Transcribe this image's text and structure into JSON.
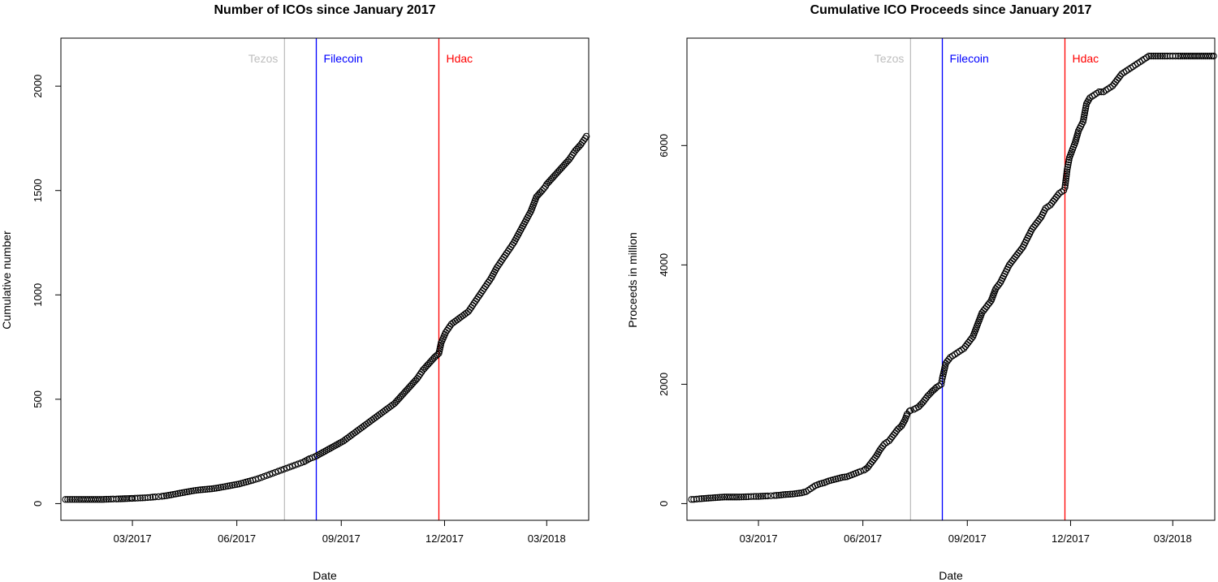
{
  "chart_data": [
    {
      "type": "scatter",
      "title": "Number of ICOs since January 2017",
      "xlabel": "Date",
      "ylabel": "Cumulative number",
      "xlim": [
        "2016-12-28",
        "2018-04-07"
      ],
      "ylim": [
        -80,
        2230
      ],
      "x_ticks": [
        "03/2017",
        "06/2017",
        "09/2017",
        "12/2017",
        "03/2018"
      ],
      "x_tick_dates": [
        "2017-03-01",
        "2017-06-01",
        "2017-09-01",
        "2017-12-01",
        "2018-03-01"
      ],
      "y_ticks": [
        "0",
        "500",
        "1000",
        "1500",
        "2000"
      ],
      "y_tick_values": [
        0,
        500,
        1000,
        1500,
        2000
      ],
      "markers": [
        {
          "label": "Tezos",
          "date": "2017-07-13",
          "color": "#bebebe"
        },
        {
          "label": "Filecoin",
          "date": "2017-08-10",
          "color": "#0000ff"
        },
        {
          "label": "Hdac",
          "date": "2017-11-26",
          "color": "#ff0000"
        }
      ],
      "grid": false,
      "point_style": "open-circle",
      "series": [
        {
          "x": [
            "2017-01-01",
            "2017-01-05",
            "2017-01-13",
            "2017-02-02",
            "2017-02-12",
            "2017-02-15",
            "2017-02-28",
            "2017-03-01",
            "2017-03-08",
            "2017-03-12",
            "2017-03-17",
            "2017-03-21",
            "2017-03-24",
            "2017-03-27",
            "2017-03-31",
            "2017-04-04",
            "2017-04-08",
            "2017-04-12",
            "2017-04-16",
            "2017-04-20",
            "2017-04-24",
            "2017-04-28",
            "2017-05-02",
            "2017-05-06",
            "2017-05-10",
            "2017-05-14",
            "2017-05-18",
            "2017-05-22",
            "2017-05-26",
            "2017-05-30",
            "2017-06-03",
            "2017-06-07",
            "2017-06-11",
            "2017-06-15",
            "2017-06-20",
            "2017-06-25",
            "2017-06-30",
            "2017-07-05",
            "2017-07-10",
            "2017-07-15",
            "2017-07-20",
            "2017-07-25",
            "2017-07-30",
            "2017-08-04",
            "2017-08-09",
            "2017-08-14",
            "2017-08-19",
            "2017-08-24",
            "2017-08-29",
            "2017-09-03",
            "2017-09-08",
            "2017-09-13",
            "2017-09-18",
            "2017-09-23",
            "2017-09-28",
            "2017-10-03",
            "2017-10-08",
            "2017-10-13",
            "2017-10-18",
            "2017-10-23",
            "2017-10-28",
            "2017-11-02",
            "2017-11-07",
            "2017-11-12",
            "2017-11-17",
            "2017-11-22",
            "2017-11-26",
            "2017-11-28",
            "2017-12-02",
            "2017-12-07",
            "2017-12-12",
            "2017-12-17",
            "2017-12-22",
            "2017-12-27",
            "2018-01-01",
            "2018-01-06",
            "2018-01-11",
            "2018-01-16",
            "2018-01-21",
            "2018-01-26",
            "2018-01-31",
            "2018-02-05",
            "2018-02-10",
            "2018-02-15",
            "2018-02-20",
            "2018-02-25",
            "2018-02-28",
            "2018-03-01",
            "2018-03-06",
            "2018-03-11",
            "2018-03-16",
            "2018-03-21",
            "2018-03-26",
            "2018-03-31",
            "2018-04-05"
          ],
          "y": [
            20,
            20,
            20,
            20,
            22,
            22,
            25,
            25,
            27,
            28,
            30,
            32,
            33,
            35,
            38,
            42,
            46,
            50,
            54,
            58,
            62,
            65,
            67,
            69,
            71,
            74,
            78,
            82,
            86,
            90,
            94,
            100,
            106,
            112,
            120,
            130,
            140,
            150,
            160,
            170,
            180,
            190,
            200,
            215,
            225,
            240,
            255,
            270,
            285,
            300,
            320,
            340,
            360,
            380,
            400,
            420,
            440,
            460,
            480,
            510,
            540,
            570,
            600,
            640,
            670,
            700,
            720,
            770,
            820,
            860,
            880,
            900,
            920,
            960,
            1000,
            1040,
            1080,
            1130,
            1170,
            1210,
            1250,
            1300,
            1350,
            1400,
            1470,
            1500,
            1520,
            1530,
            1560,
            1590,
            1620,
            1650,
            1690,
            1720,
            1760
          ]
        }
      ]
    },
    {
      "type": "scatter",
      "title": "Cumulative ICO Proceeds since January 2017",
      "xlabel": "Date",
      "ylabel": "Proceeds in million",
      "xlim": [
        "2016-12-28",
        "2018-04-07"
      ],
      "ylim": [
        -280,
        7800
      ],
      "x_ticks": [
        "03/2017",
        "06/2017",
        "09/2017",
        "12/2017",
        "03/2018"
      ],
      "x_tick_dates": [
        "2017-03-01",
        "2017-06-01",
        "2017-09-01",
        "2017-12-01",
        "2018-03-01"
      ],
      "y_ticks": [
        "0",
        "2000",
        "4000",
        "6000"
      ],
      "y_tick_values": [
        0,
        2000,
        4000,
        6000
      ],
      "markers": [
        {
          "label": "Tezos",
          "date": "2017-07-13",
          "color": "#bebebe"
        },
        {
          "label": "Filecoin",
          "date": "2017-08-10",
          "color": "#0000ff"
        },
        {
          "label": "Hdac",
          "date": "2017-11-26",
          "color": "#ff0000"
        }
      ],
      "grid": false,
      "point_style": "open-circle",
      "series": [
        {
          "x": [
            "2017-01-01",
            "2017-01-03",
            "2017-01-08",
            "2017-01-22",
            "2017-01-30",
            "2017-02-01",
            "2017-02-10",
            "2017-02-12",
            "2017-02-20",
            "2017-02-25",
            "2017-03-01",
            "2017-03-05",
            "2017-03-09",
            "2017-03-12",
            "2017-03-15",
            "2017-03-19",
            "2017-03-23",
            "2017-03-27",
            "2017-03-31",
            "2017-04-04",
            "2017-04-08",
            "2017-04-12",
            "2017-04-16",
            "2017-04-20",
            "2017-04-24",
            "2017-04-28",
            "2017-05-02",
            "2017-05-06",
            "2017-05-10",
            "2017-05-14",
            "2017-05-18",
            "2017-05-22",
            "2017-05-26",
            "2017-05-30",
            "2017-06-02",
            "2017-06-05",
            "2017-06-09",
            "2017-06-13",
            "2017-06-16",
            "2017-06-20",
            "2017-06-24",
            "2017-06-28",
            "2017-07-02",
            "2017-07-05",
            "2017-07-08",
            "2017-07-10",
            "2017-07-12",
            "2017-07-13",
            "2017-07-16",
            "2017-07-20",
            "2017-07-24",
            "2017-07-28",
            "2017-08-01",
            "2017-08-05",
            "2017-08-09",
            "2017-08-10",
            "2017-08-13",
            "2017-08-17",
            "2017-08-21",
            "2017-08-25",
            "2017-08-29",
            "2017-09-02",
            "2017-09-06",
            "2017-09-10",
            "2017-09-14",
            "2017-09-18",
            "2017-09-22",
            "2017-09-26",
            "2017-09-30",
            "2017-10-04",
            "2017-10-08",
            "2017-10-12",
            "2017-10-16",
            "2017-10-20",
            "2017-10-24",
            "2017-10-28",
            "2017-11-01",
            "2017-11-05",
            "2017-11-09",
            "2017-11-13",
            "2017-11-17",
            "2017-11-21",
            "2017-11-25",
            "2017-11-26",
            "2017-11-28",
            "2017-11-30",
            "2017-12-02",
            "2017-12-05",
            "2017-12-08",
            "2017-12-12",
            "2017-12-15",
            "2017-12-18",
            "2017-12-22",
            "2017-12-26",
            "2017-12-30",
            "2018-01-03",
            "2018-01-07",
            "2018-01-11",
            "2018-01-15",
            "2018-01-19",
            "2018-01-23",
            "2018-01-27",
            "2018-01-31",
            "2018-02-04",
            "2018-02-08",
            "2018-02-12",
            "2018-02-16",
            "2018-02-20",
            "2018-02-24",
            "2018-03-01",
            "2018-03-06",
            "2018-04-06"
          ],
          "y": [
            70,
            70,
            80,
            100,
            110,
            110,
            110,
            110,
            115,
            120,
            120,
            125,
            128,
            130,
            135,
            140,
            150,
            155,
            160,
            170,
            180,
            200,
            250,
            300,
            330,
            350,
            380,
            400,
            420,
            440,
            450,
            480,
            510,
            540,
            560,
            600,
            700,
            800,
            900,
            1000,
            1050,
            1150,
            1250,
            1300,
            1400,
            1500,
            1550,
            1560,
            1580,
            1620,
            1700,
            1800,
            1880,
            1950,
            2000,
            2100,
            2350,
            2450,
            2500,
            2550,
            2600,
            2700,
            2800,
            3000,
            3200,
            3300,
            3400,
            3600,
            3700,
            3850,
            4000,
            4100,
            4200,
            4300,
            4450,
            4600,
            4700,
            4800,
            4950,
            5000,
            5100,
            5200,
            5250,
            5300,
            5600,
            5800,
            5900,
            6050,
            6250,
            6400,
            6700,
            6800,
            6850,
            6900,
            6900,
            6950,
            7000,
            7100,
            7200,
            7250,
            7300,
            7350,
            7400,
            7450,
            7500,
            7500,
            7500,
            7500,
            7500,
            7500,
            7500,
            7500
          ]
        }
      ]
    }
  ]
}
